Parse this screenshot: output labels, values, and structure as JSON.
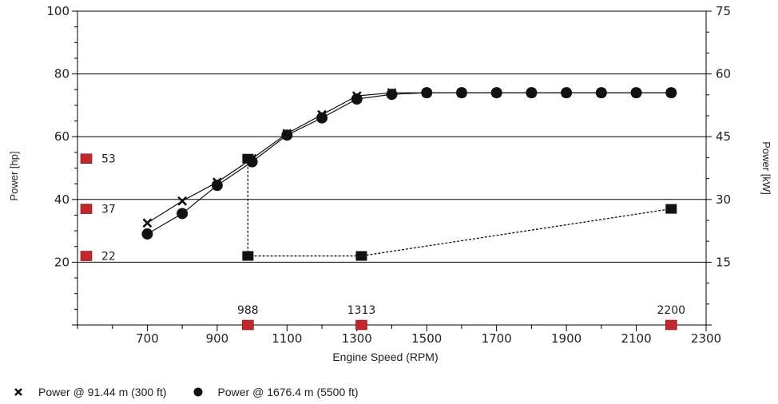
{
  "chart_data": {
    "type": "line",
    "xlabel": "Engine Speed (RPM)",
    "ylabel": "Power [hp]",
    "ylabel_right": "Power [kW]",
    "xlim": [
      500,
      2300
    ],
    "ylim": [
      0,
      100
    ],
    "ylim_right": [
      0,
      75
    ],
    "xticks": [
      700,
      900,
      1100,
      1300,
      1500,
      1700,
      1900,
      2100,
      2300
    ],
    "yticks": [
      20,
      40,
      60,
      80,
      100
    ],
    "yticks_right": [
      15,
      30,
      45,
      60,
      75
    ],
    "grid": "horizontal",
    "legend_position": "bottom-left",
    "series": [
      {
        "name": "Power @ 91.44 m (300 ft)",
        "marker": "x",
        "x": [
          700,
          800,
          900,
          1000,
          1100,
          1200,
          1300,
          1400,
          1500,
          1600,
          1700,
          1800,
          1900,
          2000,
          2100,
          2200
        ],
        "y": [
          32.5,
          39.5,
          45.5,
          53,
          61,
          67,
          73,
          74,
          74,
          74,
          74,
          74,
          74,
          74,
          74,
          74
        ]
      },
      {
        "name": "Power @ 1676.4 m (5500 ft)",
        "marker": "circle",
        "x": [
          700,
          800,
          900,
          1000,
          1100,
          1200,
          1300,
          1400,
          1500,
          1600,
          1700,
          1800,
          1900,
          2000,
          2100,
          2200
        ],
        "y": [
          29,
          35.5,
          44.5,
          52,
          60.5,
          66,
          72,
          73.5,
          74,
          74,
          74,
          74,
          74,
          74,
          74,
          74
        ]
      }
    ],
    "dashed_path": {
      "x": [
        988,
        988,
        1313,
        2200
      ],
      "y": [
        53,
        22,
        22,
        37
      ]
    },
    "y_markers": [
      {
        "value": 53,
        "label": "53"
      },
      {
        "value": 37,
        "label": "37"
      },
      {
        "value": 22,
        "label": "22"
      }
    ],
    "x_markers": [
      {
        "value": 988,
        "label": "988"
      },
      {
        "value": 1313,
        "label": "1313"
      },
      {
        "value": 2200,
        "label": "2200"
      }
    ],
    "colors": {
      "marker_red": "#c0282d",
      "series": "#111111",
      "grid": "#000000"
    }
  }
}
